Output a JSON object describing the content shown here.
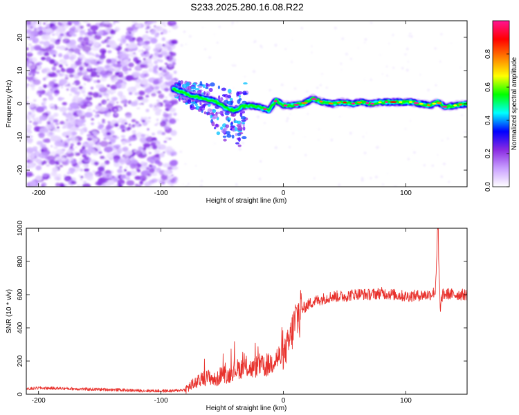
{
  "title": "S233.2025.280.16.08.R22",
  "chart_data": [
    {
      "id": "spectrogram",
      "type": "heatmap",
      "xlabel": "Height of straight line (km)",
      "ylabel": "Frequency (Hz)",
      "xlim": [
        -210,
        150
      ],
      "ylim": [
        -25,
        25
      ],
      "xticks": [
        -200,
        -100,
        0,
        100
      ],
      "yticks": [
        -20,
        -10,
        0,
        10,
        20
      ],
      "colorbar": {
        "label": "Normalized spectral amplitude",
        "range": [
          0,
          1
        ],
        "ticks": [
          0.0,
          0.2,
          0.4,
          0.6,
          0.8
        ],
        "tick_labels": [
          "0.0",
          "0.2",
          "0.4",
          "0.6",
          "0.8"
        ],
        "colormap": [
          "#ffffff",
          "#c9a0ff",
          "#8a2be2",
          "#0000ff",
          "#00ffff",
          "#00ff00",
          "#ffff00",
          "#ff8000",
          "#ff0000",
          "#ff1493"
        ]
      },
      "signal_track": [
        [
          -90,
          4.5
        ],
        [
          -82,
          3.5
        ],
        [
          -76,
          2.5
        ],
        [
          -70,
          2.0
        ],
        [
          -64,
          1.5
        ],
        [
          -58,
          1.0
        ],
        [
          -52,
          0.0
        ],
        [
          -46,
          -1.5
        ],
        [
          -40,
          -2.0
        ],
        [
          -34,
          -1.0
        ],
        [
          -28,
          -0.5
        ],
        [
          -20,
          -1.0
        ],
        [
          -12,
          -2.0
        ],
        [
          -6,
          1.0
        ],
        [
          0,
          -0.5
        ],
        [
          8,
          -0.5
        ],
        [
          16,
          0.0
        ],
        [
          24,
          1.5
        ],
        [
          32,
          0.5
        ],
        [
          40,
          0.0
        ],
        [
          48,
          0.5
        ],
        [
          56,
          0.0
        ],
        [
          64,
          0.5
        ],
        [
          72,
          0.0
        ],
        [
          80,
          0.5
        ],
        [
          88,
          0.5
        ],
        [
          96,
          0.5
        ],
        [
          104,
          0.5
        ],
        [
          112,
          0.0
        ],
        [
          120,
          -0.5
        ],
        [
          126,
          0.5
        ],
        [
          132,
          -1.0
        ],
        [
          140,
          -0.5
        ],
        [
          150,
          0.0
        ]
      ]
    },
    {
      "id": "snr",
      "type": "line",
      "xlabel": "Height of straight line (km)",
      "ylabel": "SNR (10 * v/v)",
      "xlim": [
        -210,
        150
      ],
      "ylim": [
        0,
        1000
      ],
      "xticks": [
        -200,
        -100,
        0,
        100
      ],
      "yticks": [
        0,
        200,
        400,
        600,
        800,
        1000
      ],
      "series": [
        {
          "name": "SNR",
          "color": "#e8322d",
          "x": [
            -210,
            -200,
            -180,
            -160,
            -140,
            -120,
            -100,
            -90,
            -80,
            -75,
            -70,
            -65,
            -60,
            -55,
            -50,
            -45,
            -40,
            -35,
            -30,
            -25,
            -20,
            -15,
            -10,
            -5,
            0,
            5,
            10,
            15,
            20,
            25,
            30,
            35,
            40,
            50,
            60,
            70,
            80,
            90,
            100,
            110,
            120,
            124,
            126,
            128,
            130,
            135,
            140,
            150
          ],
          "y": [
            30,
            38,
            35,
            30,
            28,
            22,
            20,
            20,
            28,
            55,
            75,
            95,
            105,
            80,
            130,
            110,
            150,
            155,
            165,
            150,
            180,
            160,
            190,
            220,
            230,
            320,
            450,
            510,
            540,
            560,
            570,
            580,
            590,
            590,
            605,
            600,
            610,
            600,
            590,
            595,
            600,
            620,
            980,
            520,
            600,
            605,
            600,
            600
          ]
        }
      ]
    }
  ]
}
